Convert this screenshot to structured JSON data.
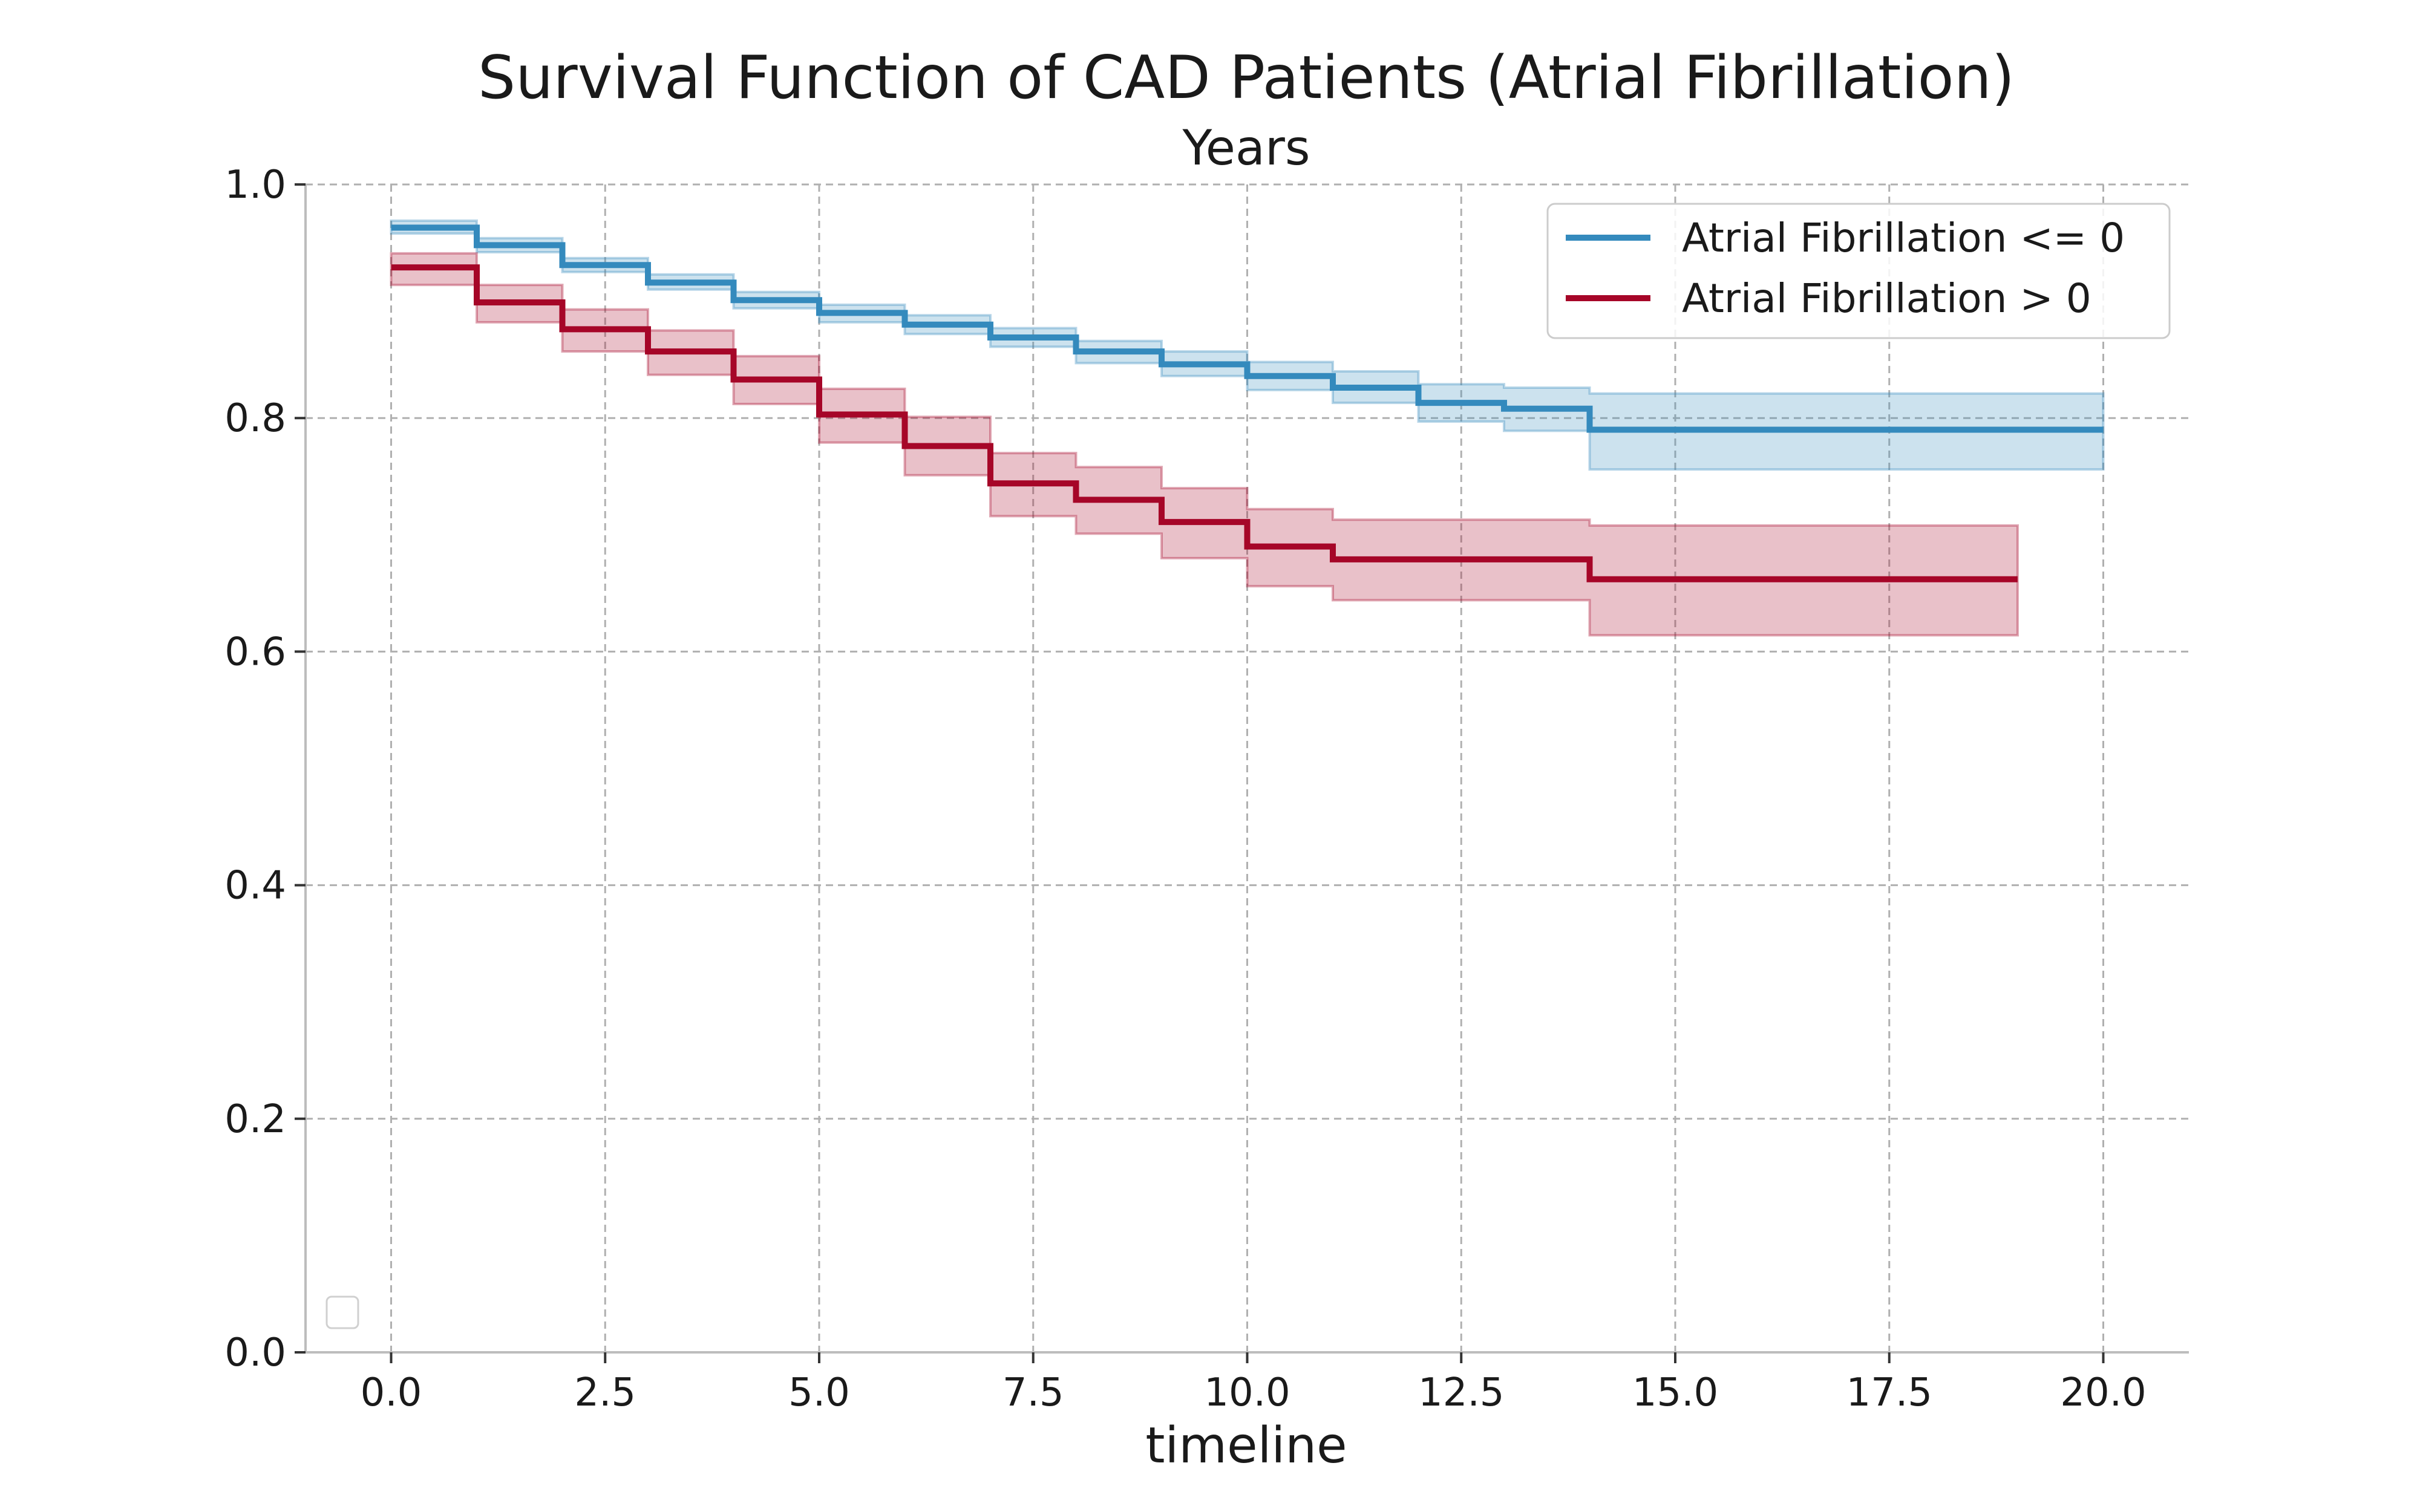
{
  "chart_data": {
    "type": "line",
    "title": "Survival Function of CAD Patients (Atrial Fibrillation)",
    "subtitle": "Years",
    "xlabel": "timeline",
    "ylabel": "",
    "xlim": [
      -1,
      21
    ],
    "ylim": [
      0,
      1
    ],
    "xticks": [
      0,
      2.5,
      5,
      7.5,
      10,
      12.5,
      15,
      17.5,
      20
    ],
    "xtick_labels": [
      "0.0",
      "2.5",
      "5.0",
      "7.5",
      "10.0",
      "12.5",
      "15.0",
      "17.5",
      "20.0"
    ],
    "yticks": [
      0,
      0.2,
      0.4,
      0.6,
      0.8,
      1.0
    ],
    "ytick_labels": [
      "0.0",
      "0.2",
      "0.4",
      "0.6",
      "0.8",
      "1.0"
    ],
    "grid": true,
    "legend_position": "top-right",
    "series": [
      {
        "name": "Atrial Fibrillation <= 0",
        "color": "#348abd",
        "step": "post",
        "x": [
          0,
          1,
          2,
          3,
          4,
          5,
          6,
          7,
          8,
          9,
          10,
          11,
          12,
          13,
          14,
          20
        ],
        "y": [
          0.963,
          0.948,
          0.931,
          0.916,
          0.901,
          0.89,
          0.88,
          0.869,
          0.857,
          0.846,
          0.836,
          0.826,
          0.813,
          0.808,
          0.79,
          0.79
        ],
        "ci_lower": [
          0.958,
          0.942,
          0.925,
          0.91,
          0.894,
          0.882,
          0.872,
          0.861,
          0.847,
          0.836,
          0.824,
          0.813,
          0.797,
          0.789,
          0.756,
          0.756
        ],
        "ci_upper": [
          0.969,
          0.954,
          0.937,
          0.923,
          0.908,
          0.897,
          0.888,
          0.877,
          0.866,
          0.857,
          0.848,
          0.84,
          0.829,
          0.826,
          0.821,
          0.821
        ]
      },
      {
        "name": "Atrial Fibrillation > 0",
        "color": "#a60628",
        "step": "post",
        "x": [
          0,
          1,
          2,
          3,
          4,
          5,
          6,
          7,
          8,
          9,
          10,
          11,
          14,
          19
        ],
        "y": [
          0.929,
          0.899,
          0.876,
          0.857,
          0.833,
          0.803,
          0.776,
          0.744,
          0.73,
          0.711,
          0.69,
          0.679,
          0.662,
          0.662
        ],
        "ci_lower": [
          0.914,
          0.882,
          0.857,
          0.837,
          0.812,
          0.779,
          0.751,
          0.716,
          0.701,
          0.68,
          0.656,
          0.644,
          0.614,
          0.614
        ],
        "ci_upper": [
          0.941,
          0.914,
          0.893,
          0.875,
          0.853,
          0.825,
          0.801,
          0.77,
          0.758,
          0.74,
          0.722,
          0.713,
          0.708,
          0.708
        ]
      }
    ]
  }
}
